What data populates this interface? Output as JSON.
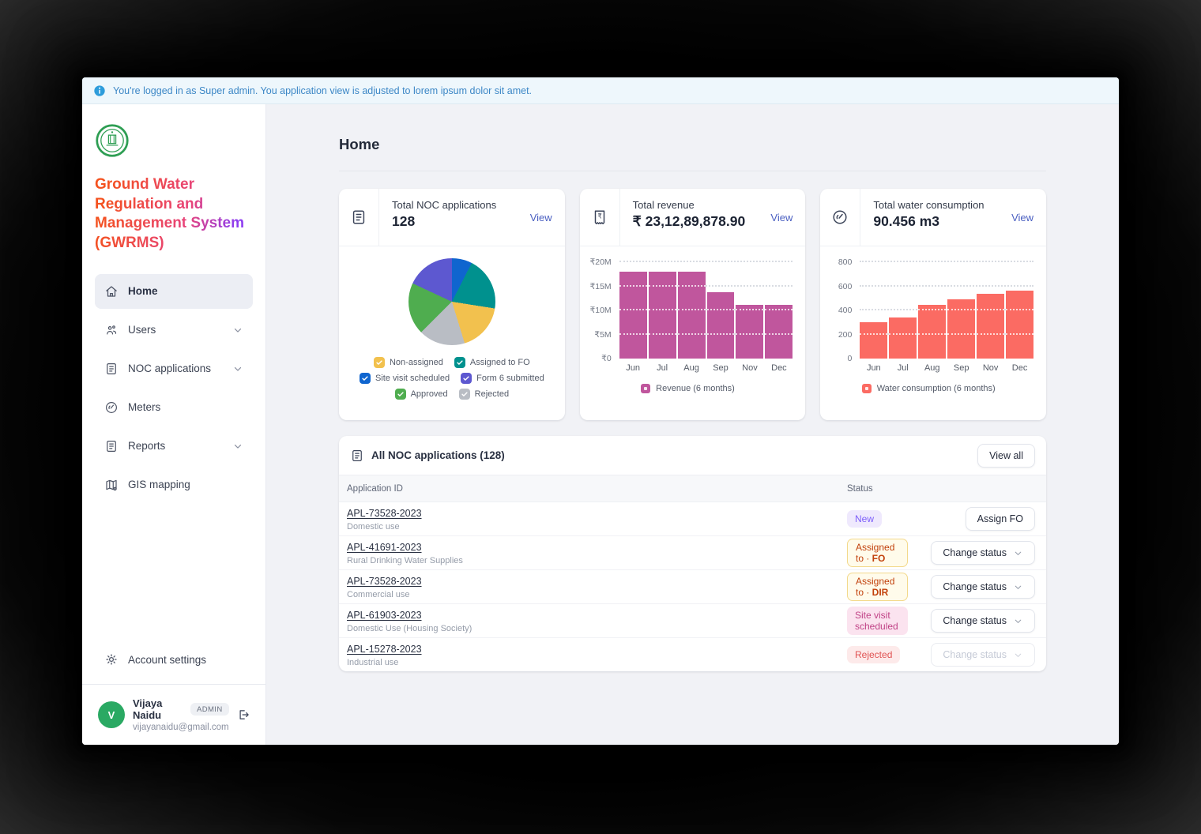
{
  "banner": {
    "text": "You're logged in as Super admin. You application view is adjusted to lorem ipsum dolor sit amet."
  },
  "sidebar": {
    "title": "Ground Water Regulation and Management System (GWRMS)",
    "nav": [
      {
        "label": "Home",
        "icon": "home",
        "active": true,
        "chevron": false
      },
      {
        "label": "Users",
        "icon": "users",
        "active": false,
        "chevron": true
      },
      {
        "label": "NOC applications",
        "icon": "document",
        "active": false,
        "chevron": true
      },
      {
        "label": "Meters",
        "icon": "gauge",
        "active": false,
        "chevron": false
      },
      {
        "label": "Reports",
        "icon": "report",
        "active": false,
        "chevron": true
      },
      {
        "label": "GIS mapping",
        "icon": "map",
        "active": false,
        "chevron": false
      }
    ],
    "account_settings": "Account settings",
    "user": {
      "avatar_initial": "V",
      "name": "Vijaya Naidu",
      "role": "ADMIN",
      "email": "vijayanaidu@gmail.com"
    }
  },
  "page": {
    "title": "Home"
  },
  "cards": [
    {
      "title": "Total NOC applications",
      "value": "128",
      "view": "View"
    },
    {
      "title": "Total revenue",
      "value": "₹ 23,12,89,878.90",
      "view": "View"
    },
    {
      "title": "Total water consumption",
      "value": "90.456 m3",
      "view": "View"
    }
  ],
  "chart_data": [
    {
      "type": "pie",
      "title": "Total NOC applications by status",
      "start_angle": -35,
      "slices": [
        {
          "label": "Site visit scheduled",
          "color": "#0f65cf",
          "degrees": 62
        },
        {
          "label": "Assigned to FO",
          "color": "#00918e",
          "degrees": 72
        },
        {
          "label": "Non-assigned",
          "color": "#f2c14e",
          "degrees": 64
        },
        {
          "label": "Rejected",
          "color": "#b9bdc4",
          "degrees": 62
        },
        {
          "label": "Approved",
          "color": "#4fad4f",
          "degrees": 70
        },
        {
          "label": "Form 6 submitted",
          "color": "#5d58d0",
          "degrees": 30
        }
      ],
      "legend_rows": [
        [
          "Non-assigned",
          "Assigned to FO"
        ],
        [
          "Site visit scheduled",
          "Form 6 submitted"
        ],
        [
          "Approved",
          "Rejected"
        ]
      ]
    },
    {
      "type": "bar",
      "title": "Total revenue (6 months)",
      "categories": [
        "Jun",
        "Jul",
        "Aug",
        "Sep",
        "Nov",
        "Dec"
      ],
      "values": [
        18,
        18,
        18,
        13.8,
        11.2,
        11.2
      ],
      "unit": "₹M",
      "ylim": [
        0,
        20
      ],
      "yticks": [
        {
          "label": "₹20M",
          "value": 20
        },
        {
          "label": "₹15M",
          "value": 15
        },
        {
          "label": "₹10M",
          "value": 10
        },
        {
          "label": "₹5M",
          "value": 5
        },
        {
          "label": "₹0",
          "value": 0
        }
      ],
      "color": "#c0569d",
      "legend": "Revenue (6 months)"
    },
    {
      "type": "bar",
      "title": "Total water consumption (6 months)",
      "categories": [
        "Jun",
        "Jul",
        "Aug",
        "Sep",
        "Nov",
        "Dec"
      ],
      "values": [
        300,
        340,
        445,
        490,
        540,
        565
      ],
      "unit": "m3",
      "ylim": [
        0,
        800
      ],
      "yticks": [
        {
          "label": "800",
          "value": 800
        },
        {
          "label": "600",
          "value": 600
        },
        {
          "label": "400",
          "value": 400
        },
        {
          "label": "200",
          "value": 200
        },
        {
          "label": "0",
          "value": 0
        }
      ],
      "color": "#fb6b63",
      "legend": "Water consumption (6 months)"
    }
  ],
  "table": {
    "title": "All NOC applications (128)",
    "view_all": "View all",
    "columns": [
      "Application ID",
      "Status"
    ],
    "rows": [
      {
        "id": "APL-73528-2023",
        "sub": "Domestic use",
        "status": {
          "label": "New",
          "type": "new"
        },
        "action": {
          "label": "Assign FO",
          "type": "button",
          "disabled": false
        }
      },
      {
        "id": "APL-41691-2023",
        "sub": "Rural Drinking Water Supplies",
        "status": {
          "prefix": "Assigned to ·",
          "bold": "FO",
          "type": "assigned"
        },
        "action": {
          "label": "Change status",
          "type": "dropdown",
          "disabled": false
        }
      },
      {
        "id": "APL-73528-2023",
        "sub": "Commercial use",
        "status": {
          "prefix": "Assigned to ·",
          "bold": "DIR",
          "type": "assigned"
        },
        "action": {
          "label": "Change status",
          "type": "dropdown",
          "disabled": false
        }
      },
      {
        "id": "APL-61903-2023",
        "sub": "Domestic Use (Housing Society)",
        "status": {
          "label": "Site visit scheduled",
          "type": "site"
        },
        "action": {
          "label": "Change status",
          "type": "dropdown",
          "disabled": false
        }
      },
      {
        "id": "APL-15278-2023",
        "sub": "Industrial use",
        "status": {
          "label": "Rejected",
          "type": "rejected"
        },
        "action": {
          "label": "Change status",
          "type": "dropdown",
          "disabled": true
        }
      }
    ]
  }
}
